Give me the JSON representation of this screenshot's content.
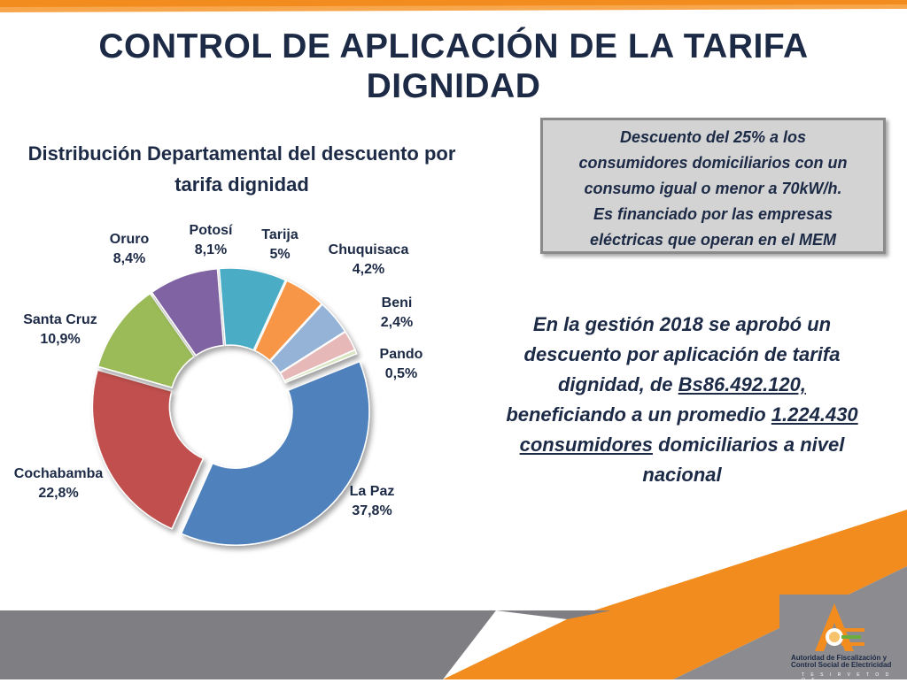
{
  "title": "CONTROL DE APLICACIÓN DE LA TARIFA DIGNIDAD",
  "chart_data": {
    "type": "pie",
    "title": "Distribución  Departamental del descuento por tarifa dignidad",
    "slices": [
      {
        "name": "La Paz",
        "label": "37,8%",
        "value": 37.8,
        "color": "#4f81bd"
      },
      {
        "name": "Cochabamba",
        "label": "22,8%",
        "value": 22.8,
        "color": "#c0504d"
      },
      {
        "name": "Santa Cruz",
        "label": "10,9%",
        "value": 10.9,
        "color": "#9bbb59"
      },
      {
        "name": "Oruro",
        "label": "8,4%",
        "value": 8.4,
        "color": "#8064a2"
      },
      {
        "name": "Potosí",
        "label": "8,1%",
        "value": 8.1,
        "color": "#4bacc6"
      },
      {
        "name": "Tarija",
        "label": "5%",
        "value": 5.0,
        "color": "#f79646"
      },
      {
        "name": "Chuquisaca",
        "label": "4,2%",
        "value": 4.2,
        "color": "#95b3d7"
      },
      {
        "name": "Beni",
        "label": "2,4%",
        "value": 2.4,
        "color": "#e6b9b8"
      },
      {
        "name": "Pando",
        "label": "0,5%",
        "value": 0.5,
        "color": "#d7e4bd"
      }
    ]
  },
  "note_box": {
    "lines": [
      "Descuento del 25% a los",
      "consumidores domiciliarios  con un",
      "consumo igual o menor a 70kW/h.",
      "Es financiado por las empresas",
      "eléctricas  que operan en el MEM"
    ]
  },
  "summary": {
    "line1": "En la gestión 2018 se aprobó un",
    "line2": "descuento por aplicación de tarifa",
    "line3_pre": "dignidad, de ",
    "amount": "Bs86.492.120,",
    "line4_pre": "beneficiando a un promedio ",
    "count": "1.224.430",
    "consumers": "consumidores",
    "line5_post": " domiciliarios a nivel",
    "line6": "nacional"
  },
  "logo": {
    "line1": "Autoridad de Fiscalización y",
    "line2": "Control Social de Electricidad",
    "motto": "T E  S I R V E  T O D O S"
  },
  "colors": {
    "accent_orange": "#f28c1e",
    "title_navy": "#1c2a46",
    "footer_gray": "#7e7e83"
  }
}
